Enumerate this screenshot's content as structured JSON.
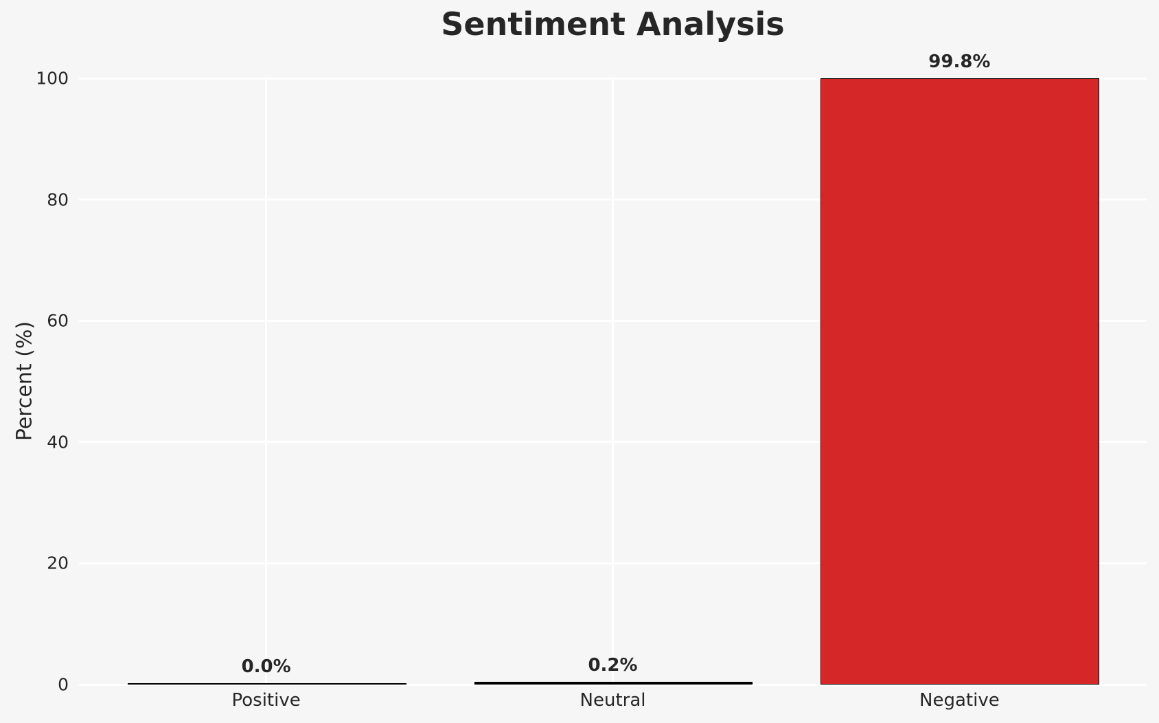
{
  "title": "Sentiment Analysis",
  "chart_data": {
    "type": "bar",
    "title": "Sentiment Analysis",
    "xlabel": "",
    "ylabel": "Percent (%)",
    "categories": [
      "Positive",
      "Neutral",
      "Negative"
    ],
    "values": [
      0.0,
      0.2,
      99.8
    ],
    "value_labels": [
      "0.0%",
      "0.2%",
      "99.8%"
    ],
    "yticks": [
      0,
      20,
      40,
      60,
      80,
      100
    ],
    "ylim": [
      0,
      100
    ],
    "xlim": [
      -0.54,
      2.54
    ],
    "bar_width": 0.8,
    "bar_fill_colors": [
      "#000000",
      "#000000",
      "#d62728"
    ],
    "bar_edge_color": "#000000",
    "grid": true,
    "gridline_color": "#ffffff",
    "background_color": "#f6f6f6",
    "text_color": "#262626",
    "legend_position": "none"
  }
}
